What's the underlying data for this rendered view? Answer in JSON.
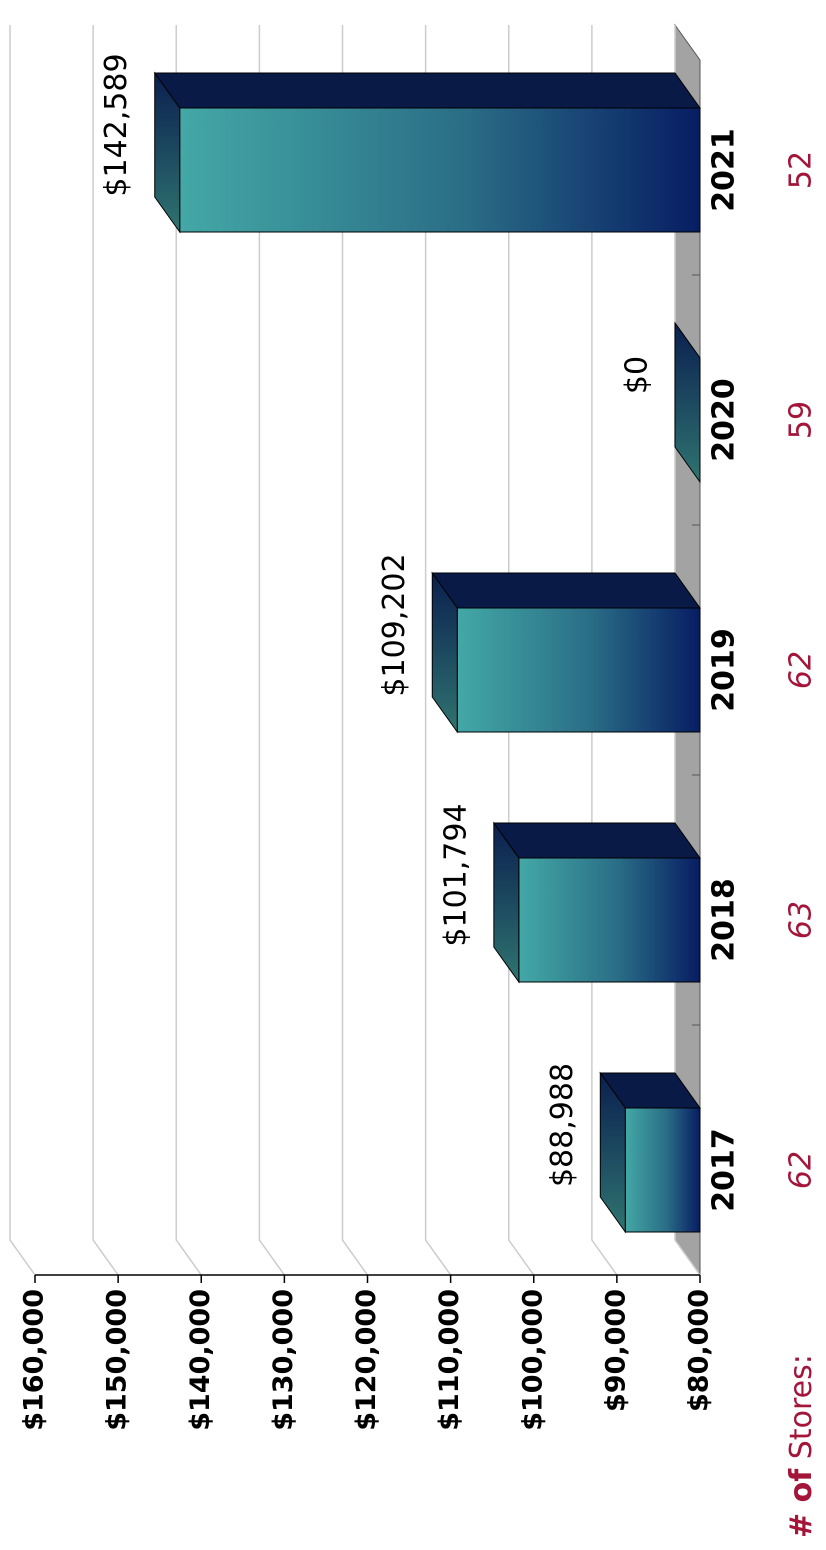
{
  "chart_data": {
    "type": "bar3d",
    "categories": [
      "2017",
      "2018",
      "2019",
      "2020",
      "2021"
    ],
    "values": [
      88988,
      101794,
      109202,
      0,
      142589
    ],
    "value_labels": [
      "$88,988",
      "$101,794",
      "$109,202",
      "$0",
      "$142,589"
    ],
    "ylim": [
      80000,
      160000
    ],
    "yticks": [
      {
        "value": 80000,
        "label": "$80,000"
      },
      {
        "value": 90000,
        "label": "$90,000"
      },
      {
        "value": 100000,
        "label": "$100,000"
      },
      {
        "value": 110000,
        "label": "$110,000"
      },
      {
        "value": 120000,
        "label": "$120,000"
      },
      {
        "value": 130000,
        "label": "$130,000"
      },
      {
        "value": 140000,
        "label": "$140,000"
      },
      {
        "value": 150000,
        "label": "$150,000"
      },
      {
        "value": 160000,
        "label": "$160,000"
      }
    ],
    "grid": true,
    "stores_label_bold": "# of",
    "stores_label": "Stores:",
    "stores": [
      62,
      63,
      62,
      59,
      52
    ]
  }
}
